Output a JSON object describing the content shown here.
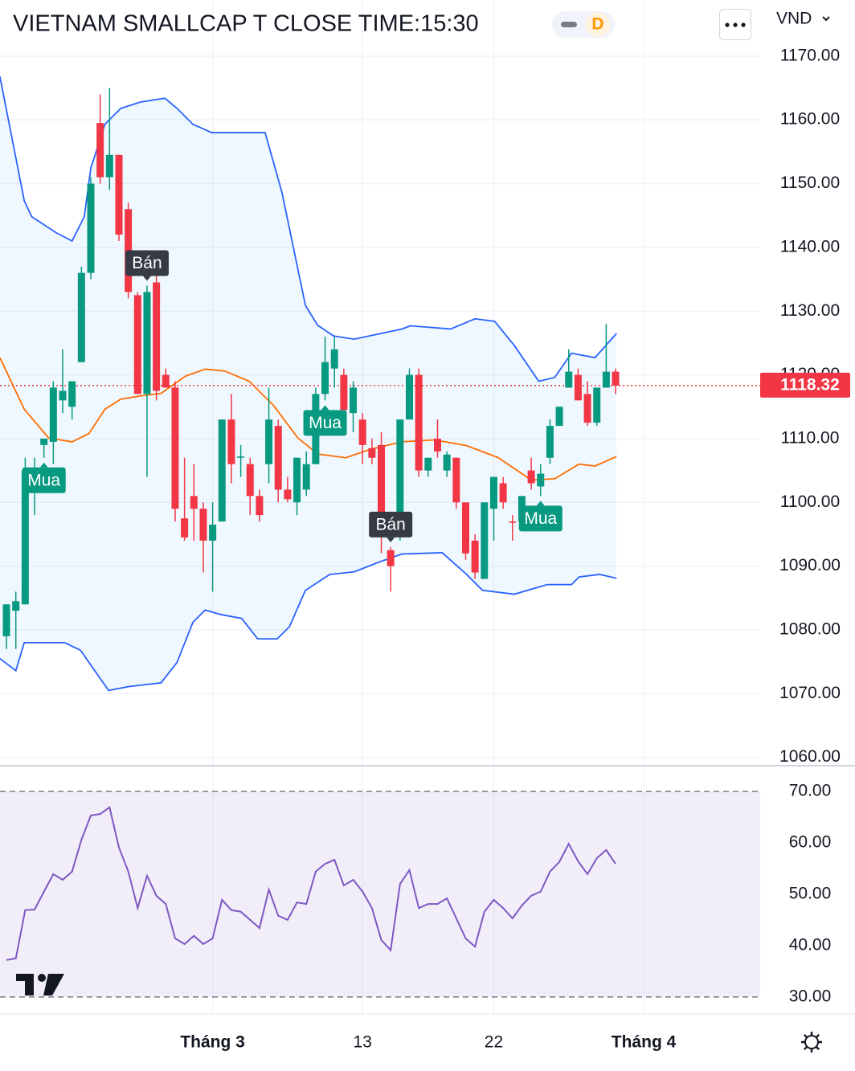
{
  "header": {
    "title": "VIETNAM SMALLCAP T CLOSE TIME:15:30",
    "interval": "D",
    "currency": "VND"
  },
  "chart_data": [
    {
      "type": "candlestick",
      "open": [
        1079,
        1083,
        1084,
        1104,
        1109,
        1109.5,
        1116,
        1115,
        1122,
        1136,
        1159.5,
        1151,
        1154.5,
        1146,
        1132.5,
        1117,
        1134.5,
        1120,
        1118,
        1097.5,
        1101,
        1099,
        1094,
        1097,
        1113,
        1107,
        1106,
        1101,
        1106,
        1112,
        1102,
        1100,
        1102,
        1106,
        1117,
        1121,
        1120,
        1114,
        1113,
        1108.5,
        1109,
        1092.5,
        1095,
        1113,
        1120,
        1105,
        1110,
        1105,
        1107,
        1100,
        1094,
        1088,
        1099,
        1103,
        1097,
        1097,
        1105,
        1102.5,
        1107,
        1112,
        1118,
        1120,
        1117,
        1112.5,
        1118,
        1120.5
      ],
      "high": [
        1084,
        1086,
        1107,
        1107,
        1110,
        1119,
        1124,
        1119,
        1137,
        1151,
        1164,
        1165,
        1154.5,
        1147,
        1133,
        1134,
        1137,
        1121,
        1119,
        1107,
        1106,
        1100,
        1100,
        1113,
        1117,
        1109,
        1107,
        1102,
        1118,
        1113,
        1104,
        1107,
        1108,
        1118,
        1126,
        1126,
        1121,
        1119,
        1114,
        1110,
        1111,
        1093,
        1113,
        1121,
        1121,
        1107,
        1113,
        1108,
        1107,
        1100,
        1095,
        1100,
        1104,
        1104,
        1098,
        1101,
        1107,
        1106,
        1113,
        1115,
        1124,
        1121,
        1119,
        1118,
        1128,
        1121
      ],
      "low": [
        1077,
        1077,
        1084,
        1098,
        1107,
        1106,
        1114,
        1113,
        1122,
        1135,
        1150,
        1149,
        1141,
        1132,
        1117,
        1104,
        1116,
        1118,
        1097,
        1094,
        1094,
        1089,
        1086,
        1097,
        1103,
        1104,
        1098,
        1097,
        1103,
        1100,
        1100,
        1098,
        1101,
        1106,
        1116,
        1118,
        1114,
        1111,
        1106,
        1106,
        1092,
        1086,
        1094,
        1113,
        1104,
        1104,
        1107,
        1104,
        1099,
        1091,
        1088,
        1088,
        1094,
        1099,
        1094,
        1096,
        1102,
        1101,
        1106,
        1112,
        1118,
        1116,
        1112,
        1112,
        1118,
        1117
      ],
      "close": [
        1084,
        1084.5,
        1105,
        1104.5,
        1110,
        1118,
        1117.5,
        1119,
        1136,
        1150,
        1151,
        1154.5,
        1142,
        1133,
        1117,
        1133,
        1117.5,
        1118,
        1099,
        1094.5,
        1099,
        1094,
        1096.5,
        1113,
        1106,
        1107.2,
        1101,
        1098,
        1113,
        1102,
        1100.5,
        1107,
        1106,
        1117,
        1122,
        1124,
        1114.5,
        1118,
        1109,
        1107,
        1095,
        1090,
        1113,
        1120,
        1105,
        1107,
        1108,
        1107.5,
        1100,
        1092,
        1089,
        1100,
        1104,
        1100,
        1096.8,
        1101,
        1103,
        1104.5,
        1112,
        1115,
        1120.5,
        1116,
        1112.5,
        1118,
        1120.5,
        1118.32
      ],
      "up_color": "#089981",
      "down_color": "#f23645",
      "bollinger": {
        "upper_color": "#2962ff",
        "middle_color": "#ff6d00",
        "lower_color": "#2962ff",
        "fill": "#2196f3",
        "upper": {
          "x": [
            -0.7,
            1.9,
            2.7,
            5.3,
            7.0,
            8.3,
            9.0,
            10.5,
            12.2,
            14.3,
            16.9,
            18.2,
            19.9,
            21.9,
            27.6,
            29.4,
            31.9,
            33.2,
            34.9,
            37.1,
            42.2,
            43.1,
            47.4,
            50.0,
            52.1,
            54.2,
            56.8,
            58.5,
            60.3,
            62.8,
            65.1
          ],
          "values": [
            1166.8,
            1147.3,
            1144.8,
            1142.3,
            1141.0,
            1144.8,
            1152.4,
            1159.3,
            1161.8,
            1162.8,
            1163.4,
            1161.8,
            1159.3,
            1158.0,
            1158.0,
            1148.6,
            1130.9,
            1127.8,
            1126.1,
            1125.6,
            1127.2,
            1127.7,
            1127.2,
            1128.8,
            1128.4,
            1124.6,
            1119.0,
            1119.6,
            1123.4,
            1122.7,
            1126.5
          ]
        },
        "middle": {
          "x": [
            -0.7,
            1.9,
            4.5,
            7.0,
            8.8,
            10.5,
            12.2,
            14.3,
            16.5,
            19.1,
            21.2,
            23.3,
            25.9,
            28.5,
            31.1,
            33.2,
            36.2,
            38.8,
            42.2,
            45.7,
            49.1,
            52.5,
            56.0,
            58.5,
            61.1,
            62.8,
            65.1
          ],
          "values": [
            1122.7,
            1114.6,
            1110.1,
            1109.5,
            1110.8,
            1114.6,
            1116.2,
            1116.7,
            1117.1,
            1119.8,
            1120.9,
            1120.6,
            1119.0,
            1115.2,
            1110.1,
            1107.6,
            1107.0,
            1108.3,
            1109.5,
            1109.8,
            1108.9,
            1107.0,
            1103.5,
            1103.7,
            1106.0,
            1105.7,
            1107.2
          ]
        },
        "lower": {
          "x": [
            -0.7,
            1.0,
            1.9,
            6.2,
            7.9,
            10.9,
            13.0,
            16.5,
            18.2,
            19.9,
            21.2,
            22.9,
            25.1,
            26.8,
            28.9,
            30.2,
            31.9,
            34.5,
            37.1,
            39.7,
            42.2,
            46.5,
            49.1,
            50.8,
            54.2,
            57.7,
            60.3,
            61.1,
            63.3,
            65.1
          ],
          "values": [
            1075.5,
            1073.6,
            1078.0,
            1078.0,
            1076.8,
            1070.5,
            1071.1,
            1071.7,
            1074.9,
            1081.2,
            1083.1,
            1082.4,
            1081.8,
            1078.6,
            1078.6,
            1080.5,
            1086.2,
            1088.7,
            1089.1,
            1090.6,
            1091.9,
            1092.1,
            1088.7,
            1086.2,
            1085.6,
            1087.1,
            1087.1,
            1088.3,
            1088.7,
            1088.1
          ]
        }
      },
      "signals": [
        {
          "label": "Mua",
          "index": 4,
          "side": "buy"
        },
        {
          "label": "Bán",
          "index": 15,
          "side": "sell"
        },
        {
          "label": "Mua",
          "index": 34,
          "side": "buy"
        },
        {
          "label": "Bán",
          "index": 41,
          "side": "sell"
        },
        {
          "label": "Mua",
          "index": 57,
          "side": "buy"
        }
      ],
      "last_price": 1118.32,
      "last_price_color": "#f23645",
      "xlim": [
        -0.69,
        80.43
      ],
      "xticks": [
        {
          "value": 22,
          "label": "Tháng 3"
        },
        {
          "value": 38,
          "label": "13"
        },
        {
          "value": 52,
          "label": "22"
        },
        {
          "value": 68,
          "label": "Tháng 4"
        }
      ],
      "ylim": [
        1058.7,
        1178.8
      ],
      "yticks": [
        {
          "value": 1060,
          "label": "1060.00"
        },
        {
          "value": 1070,
          "label": "1070.00"
        },
        {
          "value": 1080,
          "label": "1080.00"
        },
        {
          "value": 1090,
          "label": "1090.00"
        },
        {
          "value": 1100,
          "label": "1100.00"
        },
        {
          "value": 1110,
          "label": "1110.00"
        },
        {
          "value": 1120,
          "label": "1120.00"
        },
        {
          "value": 1130,
          "label": "1130.00"
        },
        {
          "value": 1140,
          "label": "1140.00"
        },
        {
          "value": 1150,
          "label": "1150.00"
        },
        {
          "value": 1160,
          "label": "1160.00"
        },
        {
          "value": 1170,
          "label": "1170.00"
        }
      ],
      "grid": true
    },
    {
      "type": "line",
      "values": [
        37.2,
        37.5,
        46.9,
        47.0,
        50.5,
        53.9,
        52.8,
        54.4,
        60.6,
        65.3,
        65.6,
        66.9,
        59.1,
        54.4,
        47.3,
        53.6,
        49.7,
        48.1,
        41.4,
        40.3,
        41.9,
        40.3,
        41.4,
        48.9,
        46.9,
        46.6,
        45.0,
        43.4,
        50.9,
        45.8,
        45.0,
        48.4,
        48.1,
        54.4,
        55.9,
        56.7,
        51.7,
        52.8,
        50.5,
        47.3,
        41.1,
        39.1,
        52.0,
        54.7,
        47.3,
        48.1,
        48.1,
        49.2,
        45.3,
        41.4,
        39.8,
        46.6,
        48.9,
        47.3,
        45.3,
        47.8,
        49.7,
        50.5,
        54.4,
        56.3,
        59.8,
        56.4,
        53.9,
        57.0,
        58.6,
        55.9
      ],
      "color": "#7e57c2",
      "band": [
        30,
        70
      ],
      "band_color": "#7e57c2",
      "ylim": [
        26.7,
        75
      ],
      "yticks": [
        {
          "value": 30,
          "label": "30.00"
        },
        {
          "value": 40,
          "label": "40.00"
        },
        {
          "value": 50,
          "label": "50.00"
        },
        {
          "value": 60,
          "label": "60.00"
        },
        {
          "value": 70,
          "label": "70.00"
        }
      ],
      "grid": true
    }
  ]
}
